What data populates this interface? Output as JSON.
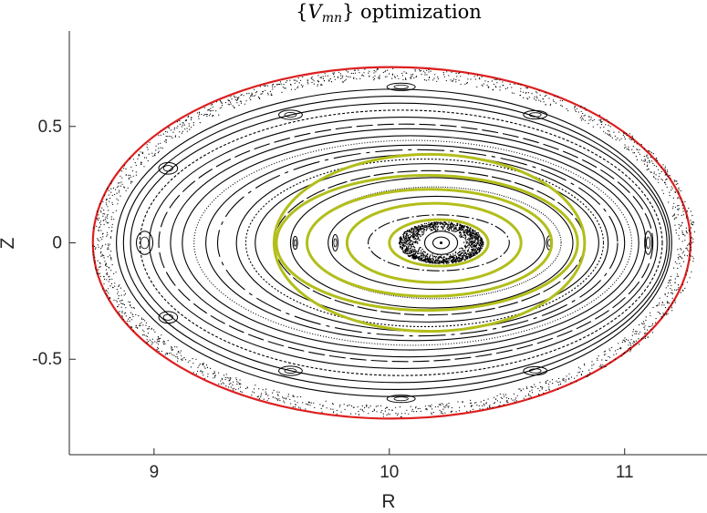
{
  "chart_data": {
    "type": "scatter",
    "title": "{V_mn} optimization",
    "title_parts": {
      "open": "{",
      "symbol": "V",
      "subscript": "mn",
      "close": "}",
      "rest": " optimization"
    },
    "xlabel": "R",
    "ylabel": "Z",
    "xlim": [
      8.64,
      11.35
    ],
    "ylim": [
      -0.91,
      0.91
    ],
    "xticks": [
      9,
      10,
      11
    ],
    "xtick_labels": [
      "9",
      "10",
      "11"
    ],
    "yticks": [
      0.5,
      0,
      -0.5
    ],
    "ytick_labels": [
      "0.5",
      "0",
      "-0.5"
    ],
    "grid": false,
    "box": "left-bottom",
    "magnetic_axis": [
      10.22,
      0.0
    ],
    "series": [
      {
        "role": "boundary",
        "color": "#dd1f1f",
        "curves": [
          {
            "center": [
              10.01,
              0.0
            ],
            "a": 1.27,
            "b": 0.755
          }
        ]
      },
      {
        "role": "flux-surfaces",
        "color": "#000000",
        "curves": [
          {
            "center": [
              10.22,
              0.0
            ],
            "a": 0.035,
            "b": 0.025
          },
          {
            "center": [
              10.22,
              0.0
            ],
            "a": 0.07,
            "b": 0.05
          },
          {
            "center": [
              10.21,
              0.0
            ],
            "a": 0.3,
            "b": 0.12
          },
          {
            "center": [
              10.2,
              0.0
            ],
            "a": 0.46,
            "b": 0.2
          },
          {
            "center": [
              10.19,
              0.0
            ],
            "a": 0.54,
            "b": 0.24
          },
          {
            "center": [
              10.18,
              0.0
            ],
            "a": 0.6,
            "b": 0.28
          },
          {
            "center": [
              10.17,
              0.0
            ],
            "a": 0.66,
            "b": 0.31
          },
          {
            "center": [
              10.16,
              0.0
            ],
            "a": 0.73,
            "b": 0.34
          },
          {
            "center": [
              10.15,
              0.0
            ],
            "a": 0.76,
            "b": 0.36
          },
          {
            "center": [
              10.14,
              0.0
            ],
            "a": 0.79,
            "b": 0.38
          },
          {
            "center": [
              10.12,
              0.0
            ],
            "a": 0.85,
            "b": 0.4
          },
          {
            "center": [
              10.11,
              0.0
            ],
            "a": 0.89,
            "b": 0.42
          },
          {
            "center": [
              10.1,
              0.0
            ],
            "a": 0.93,
            "b": 0.44
          },
          {
            "center": [
              10.09,
              0.0
            ],
            "a": 0.97,
            "b": 0.46
          },
          {
            "center": [
              10.08,
              0.0
            ],
            "a": 1.01,
            "b": 0.49
          },
          {
            "center": [
              10.07,
              0.0
            ],
            "a": 1.05,
            "b": 0.51
          },
          {
            "center": [
              10.06,
              0.0
            ],
            "a": 1.08,
            "b": 0.54
          },
          {
            "center": [
              10.05,
              0.0
            ],
            "a": 1.11,
            "b": 0.57
          },
          {
            "center": [
              10.04,
              0.0
            ],
            "a": 1.14,
            "b": 0.6
          },
          {
            "center": [
              10.03,
              0.0
            ],
            "a": 1.16,
            "b": 0.63
          },
          {
            "center": [
              10.02,
              0.0
            ],
            "a": 1.18,
            "b": 0.66
          }
        ]
      },
      {
        "role": "chaotic-core",
        "color": "#000000",
        "curves": [
          {
            "center": [
              10.22,
              0.0
            ],
            "a": 0.18,
            "b": 0.09,
            "a_inner": 0.09,
            "b_inner": 0.05
          }
        ]
      },
      {
        "role": "islands",
        "color": "#000000",
        "curves": [
          {
            "center": [
              8.96,
              0.0
            ],
            "a": 0.035,
            "b": 0.05
          },
          {
            "center": [
              9.06,
              0.32
            ],
            "a": 0.04,
            "b": 0.025
          },
          {
            "center": [
              9.06,
              -0.32
            ],
            "a": 0.04,
            "b": 0.025
          },
          {
            "center": [
              9.58,
              0.55
            ],
            "a": 0.05,
            "b": 0.02
          },
          {
            "center": [
              9.58,
              -0.55
            ],
            "a": 0.05,
            "b": 0.02
          },
          {
            "center": [
              10.05,
              0.67
            ],
            "a": 0.06,
            "b": 0.016
          },
          {
            "center": [
              10.05,
              -0.67
            ],
            "a": 0.06,
            "b": 0.016
          },
          {
            "center": [
              10.62,
              0.55
            ],
            "a": 0.05,
            "b": 0.018
          },
          {
            "center": [
              10.62,
              -0.55
            ],
            "a": 0.05,
            "b": 0.018
          },
          {
            "center": [
              11.1,
              0.0
            ],
            "a": 0.015,
            "b": 0.05
          },
          {
            "center": [
              9.77,
              0.0
            ],
            "a": 0.012,
            "b": 0.035
          },
          {
            "center": [
              10.68,
              0.0
            ],
            "a": 0.012,
            "b": 0.03
          },
          {
            "center": [
              9.6,
              0.0
            ],
            "a": 0.01,
            "b": 0.028
          }
        ]
      },
      {
        "role": "selected-surfaces",
        "color": "#b2be1a",
        "curves": [
          {
            "center": [
              10.21,
              0.0
            ],
            "a": 0.21,
            "b": 0.1
          },
          {
            "center": [
              10.19,
              0.0
            ],
            "a": 0.37,
            "b": 0.17
          },
          {
            "center": [
              10.17,
              0.0
            ],
            "a": 0.52,
            "b": 0.23
          },
          {
            "center": [
              10.16,
              0.0
            ],
            "a": 0.64,
            "b": 0.29
          },
          {
            "center": [
              10.17,
              0.0
            ],
            "a": 0.66,
            "b": 0.38
          }
        ]
      }
    ]
  }
}
